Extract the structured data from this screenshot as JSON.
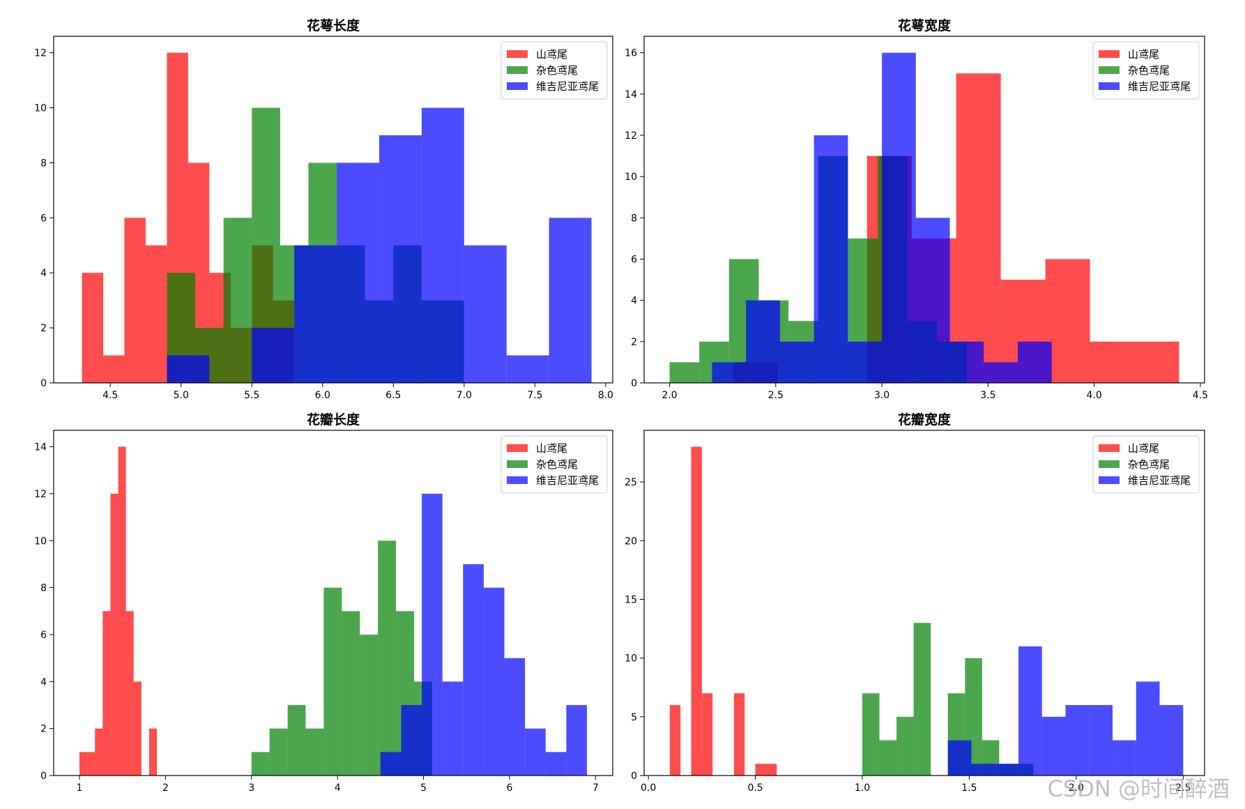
{
  "watermark": "CSDN @时间醉酒",
  "colors": {
    "山鸢尾": "#ff0000",
    "杂色鸢尾": "#008000",
    "维吉尼亚鸢尾": "#0000ff"
  },
  "alpha": 0.7,
  "chart_data": [
    {
      "type": "histogram",
      "title": "花萼长度",
      "xlim": [
        4.1,
        8.05
      ],
      "ylim": [
        0,
        12.6
      ],
      "xticks": [
        4.5,
        5.0,
        5.5,
        6.0,
        6.5,
        7.0,
        7.5,
        8.0
      ],
      "xtick_labels": [
        "4.5",
        "5.0",
        "5.5",
        "6.0",
        "6.5",
        "7.0",
        "7.5",
        "8.0"
      ],
      "yticks": [
        0,
        2,
        4,
        6,
        8,
        10,
        12
      ],
      "ytick_labels": [
        "0",
        "2",
        "4",
        "6",
        "8",
        "10",
        "12"
      ],
      "legend": "upper right",
      "series": [
        {
          "name": "山鸢尾",
          "color": "#ff0000",
          "bins": [
            [
              4.3,
              4.45,
              4
            ],
            [
              4.45,
              4.6,
              1
            ],
            [
              4.6,
              4.75,
              6
            ],
            [
              4.75,
              4.9,
              5
            ],
            [
              4.9,
              5.05,
              12
            ],
            [
              5.05,
              5.2,
              8
            ],
            [
              5.2,
              5.35,
              4
            ],
            [
              5.35,
              5.5,
              2
            ],
            [
              5.5,
              5.65,
              5
            ],
            [
              5.65,
              5.8,
              3
            ]
          ]
        },
        {
          "name": "杂色鸢尾",
          "color": "#008000",
          "bins": [
            [
              4.9,
              5.1,
              4
            ],
            [
              5.1,
              5.3,
              2
            ],
            [
              5.3,
              5.5,
              6
            ],
            [
              5.5,
              5.7,
              10
            ],
            [
              5.7,
              5.9,
              5
            ],
            [
              5.9,
              6.1,
              8
            ],
            [
              6.1,
              6.3,
              5
            ],
            [
              6.3,
              6.5,
              3
            ],
            [
              6.5,
              6.7,
              5
            ],
            [
              6.7,
              7.0,
              3
            ]
          ]
        },
        {
          "name": "维吉尼亚鸢尾",
          "color": "#0000ff",
          "bins": [
            [
              4.9,
              5.2,
              1
            ],
            [
              5.2,
              5.5,
              0
            ],
            [
              5.5,
              5.8,
              2
            ],
            [
              5.8,
              6.1,
              5
            ],
            [
              6.1,
              6.4,
              8
            ],
            [
              6.4,
              6.7,
              9
            ],
            [
              6.7,
              7.0,
              10
            ],
            [
              7.0,
              7.3,
              5
            ],
            [
              7.3,
              7.6,
              1
            ],
            [
              7.6,
              7.9,
              6
            ]
          ]
        }
      ]
    },
    {
      "type": "histogram",
      "title": "花萼宽度",
      "xlim": [
        1.88,
        4.52
      ],
      "ylim": [
        0,
        16.8
      ],
      "xticks": [
        2.0,
        2.5,
        3.0,
        3.5,
        4.0,
        4.5
      ],
      "xtick_labels": [
        "2.0",
        "2.5",
        "3.0",
        "3.5",
        "4.0",
        "4.5"
      ],
      "yticks": [
        0,
        2,
        4,
        6,
        8,
        10,
        12,
        14,
        16
      ],
      "ytick_labels": [
        "0",
        "2",
        "4",
        "6",
        "8",
        "10",
        "12",
        "14",
        "16"
      ],
      "legend": "upper right",
      "series": [
        {
          "name": "山鸢尾",
          "color": "#ff0000",
          "bins": [
            [
              2.3,
              2.51,
              1
            ],
            [
              2.51,
              2.72,
              0
            ],
            [
              2.72,
              2.93,
              0
            ],
            [
              2.93,
              3.14,
              11
            ],
            [
              3.14,
              3.35,
              7
            ],
            [
              3.35,
              3.56,
              15
            ],
            [
              3.56,
              3.77,
              5
            ],
            [
              3.77,
              3.98,
              6
            ],
            [
              3.98,
              4.19,
              2
            ],
            [
              4.19,
              4.4,
              2
            ]
          ]
        },
        {
          "name": "杂色鸢尾",
          "color": "#008000",
          "bins": [
            [
              2.0,
              2.14,
              1
            ],
            [
              2.14,
              2.28,
              2
            ],
            [
              2.28,
              2.42,
              6
            ],
            [
              2.42,
              2.56,
              4
            ],
            [
              2.56,
              2.7,
              3
            ],
            [
              2.7,
              2.84,
              11
            ],
            [
              2.84,
              2.98,
              7
            ],
            [
              2.98,
              3.12,
              11
            ],
            [
              3.12,
              3.26,
              3
            ],
            [
              3.26,
              3.4,
              2
            ]
          ]
        },
        {
          "name": "维吉尼亚鸢尾",
          "color": "#0000ff",
          "bins": [
            [
              2.2,
              2.36,
              1
            ],
            [
              2.36,
              2.52,
              4
            ],
            [
              2.52,
              2.68,
              2
            ],
            [
              2.68,
              2.84,
              12
            ],
            [
              2.84,
              3.0,
              2
            ],
            [
              3.0,
              3.16,
              16
            ],
            [
              3.16,
              3.32,
              8
            ],
            [
              3.32,
              3.48,
              2
            ],
            [
              3.48,
              3.64,
              1
            ],
            [
              3.64,
              3.8,
              2
            ]
          ]
        }
      ]
    },
    {
      "type": "histogram",
      "title": "花瓣长度",
      "xlim": [
        0.7,
        7.2
      ],
      "ylim": [
        0,
        14.7
      ],
      "xticks": [
        1,
        2,
        3,
        4,
        5,
        6,
        7
      ],
      "xtick_labels": [
        "1",
        "2",
        "3",
        "4",
        "5",
        "6",
        "7"
      ],
      "yticks": [
        0,
        2,
        4,
        6,
        8,
        10,
        12,
        14
      ],
      "ytick_labels": [
        "0",
        "2",
        "4",
        "6",
        "8",
        "10",
        "12",
        "14"
      ],
      "legend": "upper right",
      "series": [
        {
          "name": "山鸢尾",
          "color": "#ff0000",
          "bins": [
            [
              1.0,
              1.09,
              1
            ],
            [
              1.09,
              1.18,
              1
            ],
            [
              1.18,
              1.27,
              2
            ],
            [
              1.27,
              1.36,
              7
            ],
            [
              1.36,
              1.45,
              12
            ],
            [
              1.45,
              1.54,
              14
            ],
            [
              1.54,
              1.63,
              7
            ],
            [
              1.63,
              1.72,
              4
            ],
            [
              1.72,
              1.81,
              0
            ],
            [
              1.81,
              1.9,
              2
            ]
          ]
        },
        {
          "name": "杂色鸢尾",
          "color": "#008000",
          "bins": [
            [
              3.0,
              3.21,
              1
            ],
            [
              3.21,
              3.42,
              2
            ],
            [
              3.42,
              3.63,
              3
            ],
            [
              3.63,
              3.84,
              2
            ],
            [
              3.84,
              4.05,
              8
            ],
            [
              4.05,
              4.26,
              7
            ],
            [
              4.26,
              4.47,
              6
            ],
            [
              4.47,
              4.68,
              10
            ],
            [
              4.68,
              4.89,
              7
            ],
            [
              4.89,
              5.1,
              4
            ]
          ]
        },
        {
          "name": "维吉尼亚鸢尾",
          "color": "#0000ff",
          "bins": [
            [
              4.5,
              4.74,
              1
            ],
            [
              4.74,
              4.98,
              3
            ],
            [
              4.98,
              5.22,
              12
            ],
            [
              5.22,
              5.46,
              4
            ],
            [
              5.46,
              5.7,
              9
            ],
            [
              5.7,
              5.94,
              8
            ],
            [
              5.94,
              6.18,
              5
            ],
            [
              6.18,
              6.42,
              2
            ],
            [
              6.42,
              6.66,
              1
            ],
            [
              6.66,
              6.9,
              3
            ]
          ]
        }
      ]
    },
    {
      "type": "histogram",
      "title": "花瓣宽度",
      "xlim": [
        -0.02,
        2.6
      ],
      "ylim": [
        0,
        29.4
      ],
      "xticks": [
        0.0,
        0.5,
        1.0,
        1.5,
        2.0,
        2.5
      ],
      "xtick_labels": [
        "0.0",
        "0.5",
        "1.0",
        "1.5",
        "2.0",
        "2.5"
      ],
      "yticks": [
        0,
        5,
        10,
        15,
        20,
        25
      ],
      "ytick_labels": [
        "0",
        "5",
        "10",
        "15",
        "20",
        "25"
      ],
      "legend": "upper right",
      "series": [
        {
          "name": "山鸢尾",
          "color": "#ff0000",
          "bins": [
            [
              0.1,
              0.15,
              6
            ],
            [
              0.15,
              0.2,
              0
            ],
            [
              0.2,
              0.25,
              28
            ],
            [
              0.25,
              0.3,
              7
            ],
            [
              0.3,
              0.35,
              0
            ],
            [
              0.35,
              0.4,
              0
            ],
            [
              0.4,
              0.45,
              7
            ],
            [
              0.45,
              0.5,
              0
            ],
            [
              0.5,
              0.55,
              1
            ],
            [
              0.55,
              0.6,
              1
            ]
          ]
        },
        {
          "name": "杂色鸢尾",
          "color": "#008000",
          "bins": [
            [
              1.0,
              1.08,
              7
            ],
            [
              1.08,
              1.16,
              3
            ],
            [
              1.16,
              1.24,
              5
            ],
            [
              1.24,
              1.32,
              13
            ],
            [
              1.32,
              1.4,
              0
            ],
            [
              1.4,
              1.48,
              7
            ],
            [
              1.48,
              1.56,
              10
            ],
            [
              1.56,
              1.64,
              3
            ],
            [
              1.64,
              1.72,
              1
            ],
            [
              1.72,
              1.8,
              1
            ]
          ]
        },
        {
          "name": "维吉尼亚鸢尾",
          "color": "#0000ff",
          "bins": [
            [
              1.4,
              1.51,
              3
            ],
            [
              1.51,
              1.62,
              1
            ],
            [
              1.62,
              1.73,
              1
            ],
            [
              1.73,
              1.84,
              11
            ],
            [
              1.84,
              1.95,
              5
            ],
            [
              1.95,
              2.06,
              6
            ],
            [
              2.06,
              2.17,
              6
            ],
            [
              2.17,
              2.28,
              3
            ],
            [
              2.28,
              2.39,
              8
            ],
            [
              2.39,
              2.5,
              6
            ]
          ]
        }
      ]
    }
  ]
}
